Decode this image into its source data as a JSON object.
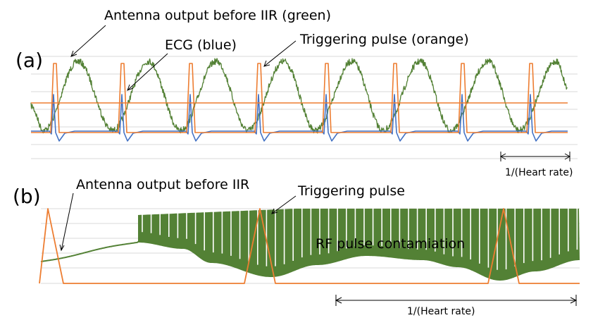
{
  "colors": {
    "green": "#538135",
    "blue": "#4472c4",
    "orange": "#ed7d31",
    "grid": "#d9d9d9"
  },
  "chart_data": [
    {
      "type": "line",
      "panel_label": "(a)",
      "grid": true,
      "series": [
        {
          "name": "Antenna output before IIR (green)",
          "color": "#538135",
          "peak_x": [
            111,
            211,
            307,
            403,
            500,
            597,
            693,
            790
          ],
          "trough_x": [
            62,
            160,
            256,
            352,
            448,
            544,
            640,
            737
          ]
        },
        {
          "name": "ECG (blue)",
          "color": "#4472c4",
          "r_peak_x": [
            76,
            173,
            270,
            367,
            463,
            560,
            656,
            753
          ],
          "amplitude": 1.0
        },
        {
          "name": "Triggering pulse (orange)",
          "color": "#ed7d31",
          "pulse_x": [
            78,
            174,
            271,
            368,
            464,
            561,
            657,
            754
          ],
          "amplitude": 1.0
        }
      ],
      "annotations": [
        {
          "text": "Antenna output before IIR (green)"
        },
        {
          "text": "ECG (blue)"
        },
        {
          "text": "Triggering pulse (orange)"
        },
        {
          "text": "1/(Heart rate)"
        }
      ]
    },
    {
      "type": "line",
      "panel_label": "(b)",
      "grid": true,
      "series": [
        {
          "name": "Antenna output before IIR",
          "color": "#538135",
          "contamination_start_x": 196
        },
        {
          "name": "Triggering pulse",
          "color": "#ed7d31",
          "pulse_x": [
            68,
            369,
            715
          ]
        }
      ],
      "annotations": [
        {
          "text": "Antenna output before IIR"
        },
        {
          "text": "Triggering pulse"
        },
        {
          "text": "RF pulse contamiation"
        },
        {
          "text": "1/(Heart rate)"
        }
      ]
    }
  ]
}
